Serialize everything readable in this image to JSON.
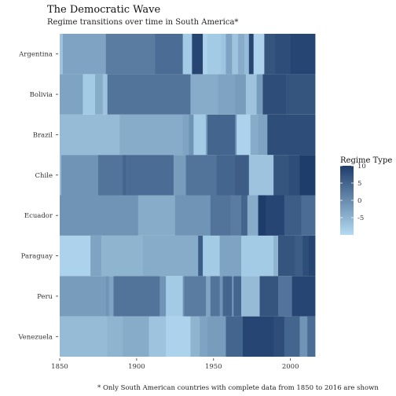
{
  "chart_data": {
    "type": "heatmap",
    "title": "The Democratic Wave",
    "subtitle": "Regime transitions over time in South America*",
    "caption": "* Only South American countries with complete data from 1850 to 2016 are shown",
    "xlabel": "",
    "ylabel": "",
    "xlim": [
      1850,
      2016
    ],
    "x_ticks": [
      1850,
      1900,
      1950,
      2000
    ],
    "color_scale": {
      "low": "#b3dbf2",
      "high": "#1f3d6b",
      "range": [
        -10,
        10
      ],
      "legend_title": "Regime Type",
      "legend_ticks": [
        10,
        5,
        0,
        -5
      ]
    },
    "countries": [
      {
        "name": "Venezuela",
        "segments": [
          [
            1850,
            1881,
            -6
          ],
          [
            1881,
            1891,
            -5
          ],
          [
            1891,
            1908,
            -4
          ],
          [
            1908,
            1919,
            -7
          ],
          [
            1919,
            1935,
            -9
          ],
          [
            1935,
            1941,
            -5
          ],
          [
            1941,
            1946,
            -3
          ],
          [
            1946,
            1958,
            -2
          ],
          [
            1958,
            1969,
            5
          ],
          [
            1969,
            1989,
            9
          ],
          [
            1989,
            1996,
            8
          ],
          [
            1996,
            2006,
            5
          ],
          [
            2006,
            2011,
            -1
          ],
          [
            2011,
            2016,
            4
          ]
        ]
      },
      {
        "name": "Peru",
        "segments": [
          [
            1850,
            1880,
            -2
          ],
          [
            1880,
            1882,
            -1
          ],
          [
            1882,
            1885,
            -3
          ],
          [
            1885,
            1915,
            3
          ],
          [
            1915,
            1919,
            -1
          ],
          [
            1919,
            1930,
            -8
          ],
          [
            1930,
            1931,
            -1
          ],
          [
            1931,
            1945,
            2
          ],
          [
            1945,
            1948,
            -3
          ],
          [
            1948,
            1954,
            3
          ],
          [
            1954,
            1956,
            -1
          ],
          [
            1956,
            1962,
            5
          ],
          [
            1962,
            1963,
            -2
          ],
          [
            1963,
            1968,
            5
          ],
          [
            1968,
            1980,
            -6
          ],
          [
            1980,
            1992,
            7
          ],
          [
            1992,
            2001,
            3
          ],
          [
            2001,
            2016,
            9
          ]
        ]
      },
      {
        "name": "Paraguay",
        "segments": [
          [
            1850,
            1870,
            -9
          ],
          [
            1870,
            1877,
            -3
          ],
          [
            1877,
            1904,
            -5
          ],
          [
            1904,
            1940,
            -4
          ],
          [
            1940,
            1943,
            6
          ],
          [
            1943,
            1954,
            -8
          ],
          [
            1954,
            1968,
            -3
          ],
          [
            1968,
            1989,
            -8
          ],
          [
            1989,
            1992,
            -5
          ],
          [
            1992,
            2003,
            7
          ],
          [
            2003,
            2008,
            6
          ],
          [
            2008,
            2012,
            8
          ],
          [
            2012,
            2016,
            9
          ]
        ]
      },
      {
        "name": "Ecuador",
        "segments": [
          [
            1850,
            1901,
            -1
          ],
          [
            1901,
            1925,
            -4
          ],
          [
            1925,
            1948,
            -1
          ],
          [
            1948,
            1961,
            3
          ],
          [
            1961,
            1968,
            2
          ],
          [
            1968,
            1972,
            5
          ],
          [
            1972,
            1979,
            -4
          ],
          [
            1979,
            1984,
            10
          ],
          [
            1984,
            1996,
            9
          ],
          [
            1996,
            2007,
            6
          ],
          [
            2007,
            2016,
            4
          ]
        ]
      },
      {
        "name": "Chile",
        "segments": [
          [
            1850,
            1851,
            -6
          ],
          [
            1851,
            1875,
            -1
          ],
          [
            1875,
            1891,
            3
          ],
          [
            1891,
            1893,
            5
          ],
          [
            1893,
            1924,
            4
          ],
          [
            1924,
            1932,
            -2
          ],
          [
            1932,
            1952,
            3
          ],
          [
            1952,
            1964,
            5
          ],
          [
            1964,
            1973,
            6
          ],
          [
            1973,
            1989,
            -7
          ],
          [
            1989,
            1999,
            7
          ],
          [
            1999,
            2006,
            8
          ],
          [
            2006,
            2016,
            10
          ]
        ]
      },
      {
        "name": "Brazil",
        "segments": [
          [
            1850,
            1889,
            -6
          ],
          [
            1889,
            1930,
            -4
          ],
          [
            1930,
            1934,
            -3
          ],
          [
            1934,
            1937,
            -1
          ],
          [
            1937,
            1945,
            -8
          ],
          [
            1945,
            1946,
            -2
          ],
          [
            1946,
            1964,
            5
          ],
          [
            1964,
            1965,
            -1
          ],
          [
            1965,
            1974,
            -9
          ],
          [
            1974,
            1979,
            -4
          ],
          [
            1979,
            1985,
            -3
          ],
          [
            1985,
            2016,
            8
          ]
        ]
      },
      {
        "name": "Bolivia",
        "segments": [
          [
            1850,
            1865,
            -3
          ],
          [
            1865,
            1873,
            -8
          ],
          [
            1873,
            1878,
            -4
          ],
          [
            1878,
            1881,
            -7
          ],
          [
            1881,
            1935,
            3
          ],
          [
            1935,
            1953,
            -4
          ],
          [
            1953,
            1964,
            -3
          ],
          [
            1964,
            1971,
            -2
          ],
          [
            1971,
            1978,
            -7
          ],
          [
            1978,
            1982,
            -2
          ],
          [
            1982,
            1997,
            8
          ],
          [
            1997,
            2016,
            7
          ]
        ]
      },
      {
        "name": "Argentina",
        "segments": [
          [
            1850,
            1852,
            -7
          ],
          [
            1852,
            1880,
            -3
          ],
          [
            1880,
            1912,
            2
          ],
          [
            1912,
            1930,
            4
          ],
          [
            1930,
            1936,
            -8
          ],
          [
            1936,
            1943,
            9
          ],
          [
            1943,
            1946,
            -9
          ],
          [
            1946,
            1955,
            -8
          ],
          [
            1955,
            1958,
            -7
          ],
          [
            1958,
            1962,
            -3
          ],
          [
            1962,
            1966,
            -7
          ],
          [
            1966,
            1970,
            -4
          ],
          [
            1970,
            1973,
            -6
          ],
          [
            1973,
            1976,
            9
          ],
          [
            1976,
            1983,
            -9
          ],
          [
            1983,
            1990,
            7
          ],
          [
            1990,
            2000,
            8
          ],
          [
            2000,
            2016,
            9
          ]
        ]
      }
    ]
  }
}
